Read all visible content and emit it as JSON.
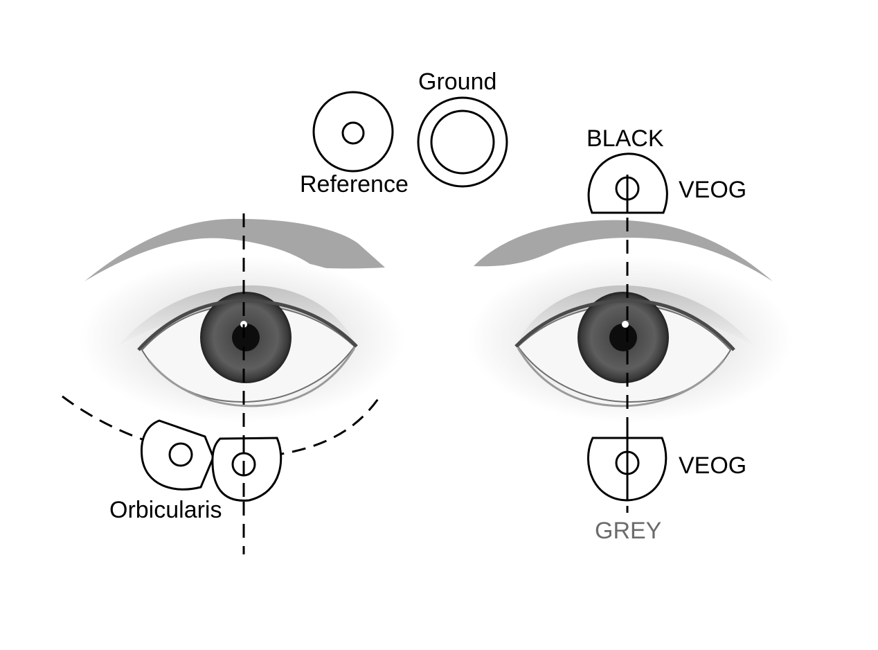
{
  "labels": {
    "ground": "Ground",
    "reference": "Reference",
    "black": "BLACK",
    "veog_top": "VEOG",
    "veog_bottom": "VEOG",
    "grey": "GREY",
    "orbicularis": "Orbicularis"
  },
  "colors": {
    "brow": "#a6a6a6",
    "grey_label": "#6b6b6b",
    "line": "#000000"
  }
}
